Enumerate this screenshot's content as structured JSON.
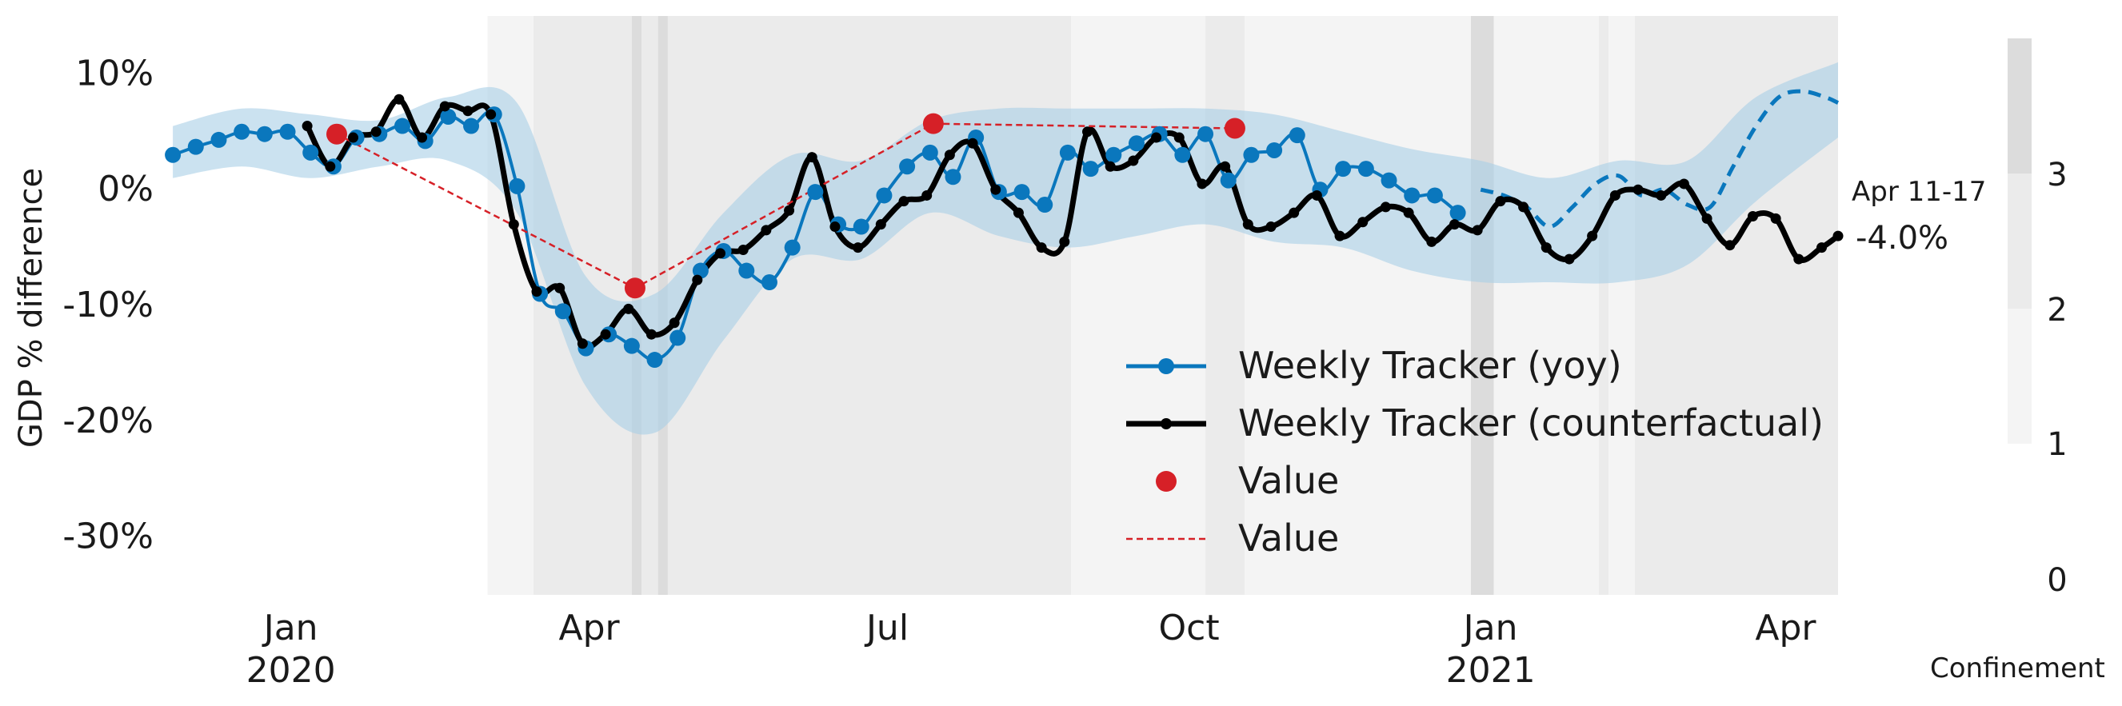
{
  "chart_data": {
    "type": "line",
    "ylabel": "GDP % difference",
    "xlim": [
      "2019-11-25",
      "2021-04-17"
    ],
    "ylim": [
      -35,
      15
    ],
    "x_ticks": [
      {
        "date": "2020-01-01",
        "label": "Jan",
        "year": "2020"
      },
      {
        "date": "2020-04-01",
        "label": "Apr",
        "year": ""
      },
      {
        "date": "2020-07-01",
        "label": "Jul",
        "year": ""
      },
      {
        "date": "2020-10-01",
        "label": "Oct",
        "year": ""
      },
      {
        "date": "2021-01-01",
        "label": "Jan",
        "year": "2021"
      },
      {
        "date": "2021-04-01",
        "label": "Apr",
        "year": ""
      }
    ],
    "y_ticks": [
      {
        "value": 10,
        "label": "10%"
      },
      {
        "value": 0,
        "label": "0%"
      },
      {
        "value": -10,
        "label": "-10%"
      },
      {
        "value": -20,
        "label": "-20%"
      },
      {
        "value": -30,
        "label": "-30%"
      }
    ],
    "colors": {
      "yoy": "#0a77bd",
      "band": "#a9cfe6",
      "counterfactual": "#000000",
      "quarterly": "#d62027"
    },
    "series": [
      {
        "name": "Weekly Tracker (yoy)",
        "style": "line-markers",
        "dates": [
          "2019-11-26",
          "2019-12-03",
          "2019-12-10",
          "2019-12-17",
          "2019-12-24",
          "2019-12-31",
          "2020-01-07",
          "2020-01-14",
          "2020-01-21",
          "2020-01-28",
          "2020-02-04",
          "2020-02-11",
          "2020-02-18",
          "2020-02-25",
          "2020-03-03",
          "2020-03-10",
          "2020-03-17",
          "2020-03-24",
          "2020-03-31",
          "2020-04-07",
          "2020-04-14",
          "2020-04-21",
          "2020-04-28",
          "2020-05-05",
          "2020-05-12",
          "2020-05-19",
          "2020-05-26",
          "2020-06-02",
          "2020-06-09",
          "2020-06-16",
          "2020-06-23",
          "2020-06-30",
          "2020-07-07",
          "2020-07-14",
          "2020-07-21",
          "2020-07-28",
          "2020-08-04",
          "2020-08-11",
          "2020-08-18",
          "2020-08-25",
          "2020-09-01",
          "2020-09-08",
          "2020-09-15",
          "2020-09-22",
          "2020-09-29",
          "2020-10-06",
          "2020-10-13",
          "2020-10-20",
          "2020-10-27",
          "2020-11-03",
          "2020-11-10",
          "2020-11-17",
          "2020-11-24",
          "2020-12-01",
          "2020-12-08",
          "2020-12-15",
          "2020-12-22"
        ],
        "values": [
          3,
          3.7,
          4.3,
          5,
          4.8,
          5,
          3.2,
          2,
          4.5,
          4.8,
          5.5,
          4.2,
          6.3,
          5.5,
          6.5,
          0.3,
          -9,
          -10.5,
          -13.7,
          -12.5,
          -13.5,
          -14.7,
          -12.8,
          -7,
          -5.3,
          -7,
          -8,
          -5,
          -0.2,
          -3,
          -3.2,
          -0.5,
          2,
          3.2,
          1.1,
          4.5,
          -0.2,
          -0.2,
          -1.3,
          3.2,
          1.8,
          3,
          4,
          4.8,
          3,
          4.8,
          0.8,
          3,
          3.4,
          4.7,
          0,
          1.8,
          1.8,
          0.8,
          -0.5,
          -0.5,
          -2
        ]
      },
      {
        "name": "Weekly Tracker (yoy) forecast",
        "style": "dashed",
        "dates": [
          "2020-12-29",
          "2021-01-05",
          "2021-01-12",
          "2021-01-19",
          "2021-01-26",
          "2021-02-02",
          "2021-02-09",
          "2021-02-16",
          "2021-02-23",
          "2021-03-02",
          "2021-03-09",
          "2021-03-16",
          "2021-03-23",
          "2021-03-30",
          "2021-04-06",
          "2021-04-13",
          "2021-04-17"
        ],
        "values": [
          0,
          -0.5,
          -1.5,
          -3.2,
          -1.5,
          0.5,
          1.2,
          -0.5,
          0,
          -1.3,
          -1.5,
          2,
          5.5,
          8,
          8.5,
          8,
          7.5
        ]
      },
      {
        "name": "Weekly Tracker (counterfactual)",
        "style": "line-small-markers",
        "dates": [
          "2020-01-06",
          "2020-01-13",
          "2020-01-20",
          "2020-01-27",
          "2020-02-03",
          "2020-02-10",
          "2020-02-17",
          "2020-02-24",
          "2020-03-02",
          "2020-03-09",
          "2020-03-16",
          "2020-03-23",
          "2020-03-30",
          "2020-04-06",
          "2020-04-13",
          "2020-04-20",
          "2020-04-27",
          "2020-05-04",
          "2020-05-11",
          "2020-05-18",
          "2020-05-25",
          "2020-06-01",
          "2020-06-08",
          "2020-06-15",
          "2020-06-22",
          "2020-06-29",
          "2020-07-06",
          "2020-07-13",
          "2020-07-20",
          "2020-07-27",
          "2020-08-03",
          "2020-08-10",
          "2020-08-17",
          "2020-08-24",
          "2020-08-31",
          "2020-09-07",
          "2020-09-14",
          "2020-09-21",
          "2020-09-28",
          "2020-10-05",
          "2020-10-12",
          "2020-10-19",
          "2020-10-26",
          "2020-11-02",
          "2020-11-09",
          "2020-11-16",
          "2020-11-23",
          "2020-11-30",
          "2020-12-07",
          "2020-12-14",
          "2020-12-21",
          "2020-12-28",
          "2021-01-04",
          "2021-01-11",
          "2021-01-18",
          "2021-01-25",
          "2021-02-01",
          "2021-02-08",
          "2021-02-15",
          "2021-02-22",
          "2021-03-01",
          "2021-03-08",
          "2021-03-15",
          "2021-03-22",
          "2021-03-29",
          "2021-04-05",
          "2021-04-12",
          "2021-04-17"
        ],
        "values": [
          5.5,
          2,
          4.5,
          5,
          7.8,
          4.5,
          7.2,
          6.8,
          6.5,
          -3,
          -8.8,
          -8.5,
          -13.3,
          -12.5,
          -10.3,
          -12.5,
          -11.5,
          -7.8,
          -5.5,
          -5.2,
          -3.5,
          -1.8,
          2.8,
          -3.2,
          -5,
          -3,
          -1,
          -0.5,
          3,
          4,
          0,
          -2,
          -5,
          -4.5,
          5,
          2,
          2.5,
          4.5,
          4.5,
          0.5,
          2,
          -3,
          -3.2,
          -2,
          -0.5,
          -4,
          -2.8,
          -1.5,
          -2,
          -4.5,
          -3,
          -3.5,
          -1,
          -1.5,
          -5,
          -6,
          -4,
          -0.5,
          0,
          -0.5,
          0.5,
          -2.5,
          -4.8,
          -2.3,
          -2.5,
          -6,
          -5,
          -4
        ]
      },
      {
        "name": "Value",
        "style": "markers",
        "dates": [
          "2020-01-15",
          "2020-04-15",
          "2020-07-15",
          "2020-10-15"
        ],
        "values": [
          4.8,
          -8.5,
          5.7,
          5.3
        ]
      },
      {
        "name": "Value",
        "style": "dashed-line",
        "dates": [
          "2020-01-15",
          "2020-04-15",
          "2020-07-15",
          "2020-10-15"
        ],
        "values": [
          4.8,
          -8.5,
          5.7,
          5.3
        ]
      }
    ],
    "confidence_band": {
      "dates": [
        "2019-11-26",
        "2019-12-17",
        "2020-01-07",
        "2020-01-28",
        "2020-02-18",
        "2020-03-10",
        "2020-03-31",
        "2020-04-21",
        "2020-05-12",
        "2020-06-02",
        "2020-06-23",
        "2020-07-14",
        "2020-08-04",
        "2020-08-25",
        "2020-09-15",
        "2020-10-06",
        "2020-10-27",
        "2020-11-17",
        "2020-12-08",
        "2020-12-29",
        "2021-01-19",
        "2021-02-09",
        "2021-03-02",
        "2021-03-23",
        "2021-04-17"
      ],
      "upper": [
        5.5,
        7,
        6.5,
        6,
        8,
        7.5,
        -7.5,
        -9,
        -2,
        3,
        2.5,
        6,
        7,
        7,
        7,
        7,
        6.5,
        5,
        3.5,
        2.5,
        1,
        2.5,
        2.5,
        8,
        11
      ],
      "lower": [
        1,
        2,
        1,
        2,
        2.5,
        -2,
        -17,
        -21,
        -13,
        -6,
        -6,
        -2,
        -4,
        -5,
        -4,
        -3,
        -4.5,
        -5,
        -7,
        -8,
        -8,
        -8,
        -6.5,
        -1,
        4.5
      ]
    },
    "confinement": {
      "title": "Confinement",
      "levels": [
        0,
        1,
        2,
        3
      ],
      "tick_labels": [
        "0",
        "1",
        "2",
        "3"
      ],
      "scale_shades": [
        "#f4f4f4",
        "#ebebeb",
        "#dcdcdc"
      ],
      "periods": [
        {
          "start": "2020-03-01",
          "end": "2020-03-15",
          "level": 1
        },
        {
          "start": "2020-03-15",
          "end": "2020-04-14",
          "level": 2
        },
        {
          "start": "2020-04-14",
          "end": "2020-04-17",
          "level": 3
        },
        {
          "start": "2020-04-17",
          "end": "2020-04-22",
          "level": 2
        },
        {
          "start": "2020-04-22",
          "end": "2020-04-25",
          "level": 3
        },
        {
          "start": "2020-04-25",
          "end": "2020-08-26",
          "level": 2
        },
        {
          "start": "2020-08-26",
          "end": "2020-10-06",
          "level": 1
        },
        {
          "start": "2020-10-06",
          "end": "2020-10-18",
          "level": 2
        },
        {
          "start": "2020-10-18",
          "end": "2020-12-26",
          "level": 1
        },
        {
          "start": "2020-12-26",
          "end": "2021-01-02",
          "level": 3
        },
        {
          "start": "2021-01-02",
          "end": "2021-02-03",
          "level": 1
        },
        {
          "start": "2021-02-03",
          "end": "2021-02-06",
          "level": 2
        },
        {
          "start": "2021-02-06",
          "end": "2021-02-14",
          "level": 1
        },
        {
          "start": "2021-02-14",
          "end": "2021-04-17",
          "level": 2
        }
      ]
    },
    "legend": {
      "placement": "lower-center",
      "entries": [
        "Weekly Tracker (yoy)",
        "Weekly Tracker (counterfactual)",
        "Value",
        "Value"
      ]
    },
    "annotation": {
      "label": "Apr 11-17",
      "value": "-4.0%"
    }
  }
}
